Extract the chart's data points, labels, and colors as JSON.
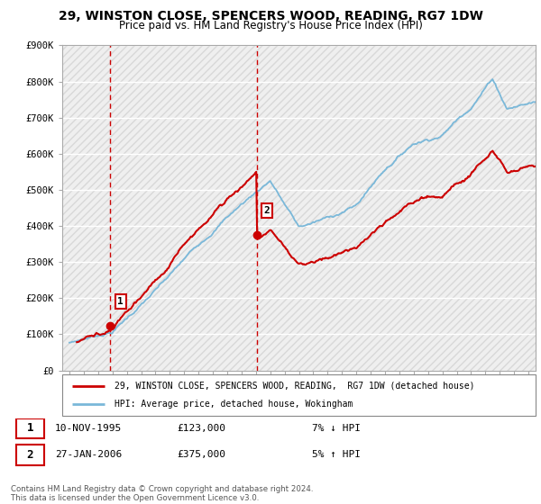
{
  "title": "29, WINSTON CLOSE, SPENCERS WOOD, READING, RG7 1DW",
  "subtitle": "Price paid vs. HM Land Registry's House Price Index (HPI)",
  "ylim": [
    0,
    900000
  ],
  "yticks": [
    0,
    100000,
    200000,
    300000,
    400000,
    500000,
    600000,
    700000,
    800000,
    900000
  ],
  "ytick_labels": [
    "£0",
    "£100K",
    "£200K",
    "£300K",
    "£400K",
    "£500K",
    "£600K",
    "£700K",
    "£800K",
    "£900K"
  ],
  "sale1_date": 1995.86,
  "sale1_price": 123000,
  "sale2_date": 2006.07,
  "sale2_price": 375000,
  "hpi_color": "#7ab8d9",
  "price_color": "#cc0000",
  "vline_color": "#cc0000",
  "legend1_text": "29, WINSTON CLOSE, SPENCERS WOOD, READING,  RG7 1DW (detached house)",
  "legend2_text": "HPI: Average price, detached house, Wokingham",
  "table_row1_num": "1",
  "table_row1_date": "10-NOV-1995",
  "table_row1_price": "£123,000",
  "table_row1_hpi": "7% ↓ HPI",
  "table_row2_num": "2",
  "table_row2_date": "27-JAN-2006",
  "table_row2_price": "£375,000",
  "table_row2_hpi": "5% ↑ HPI",
  "footer": "Contains HM Land Registry data © Crown copyright and database right 2024.\nThis data is licensed under the Open Government Licence v3.0.",
  "xlim_start": 1992.5,
  "xlim_end": 2025.5,
  "xticks": [
    1993,
    1994,
    1995,
    1996,
    1997,
    1998,
    1999,
    2000,
    2001,
    2002,
    2003,
    2004,
    2005,
    2006,
    2007,
    2008,
    2009,
    2010,
    2011,
    2012,
    2013,
    2014,
    2015,
    2016,
    2017,
    2018,
    2019,
    2020,
    2021,
    2022,
    2023,
    2024,
    2025
  ]
}
